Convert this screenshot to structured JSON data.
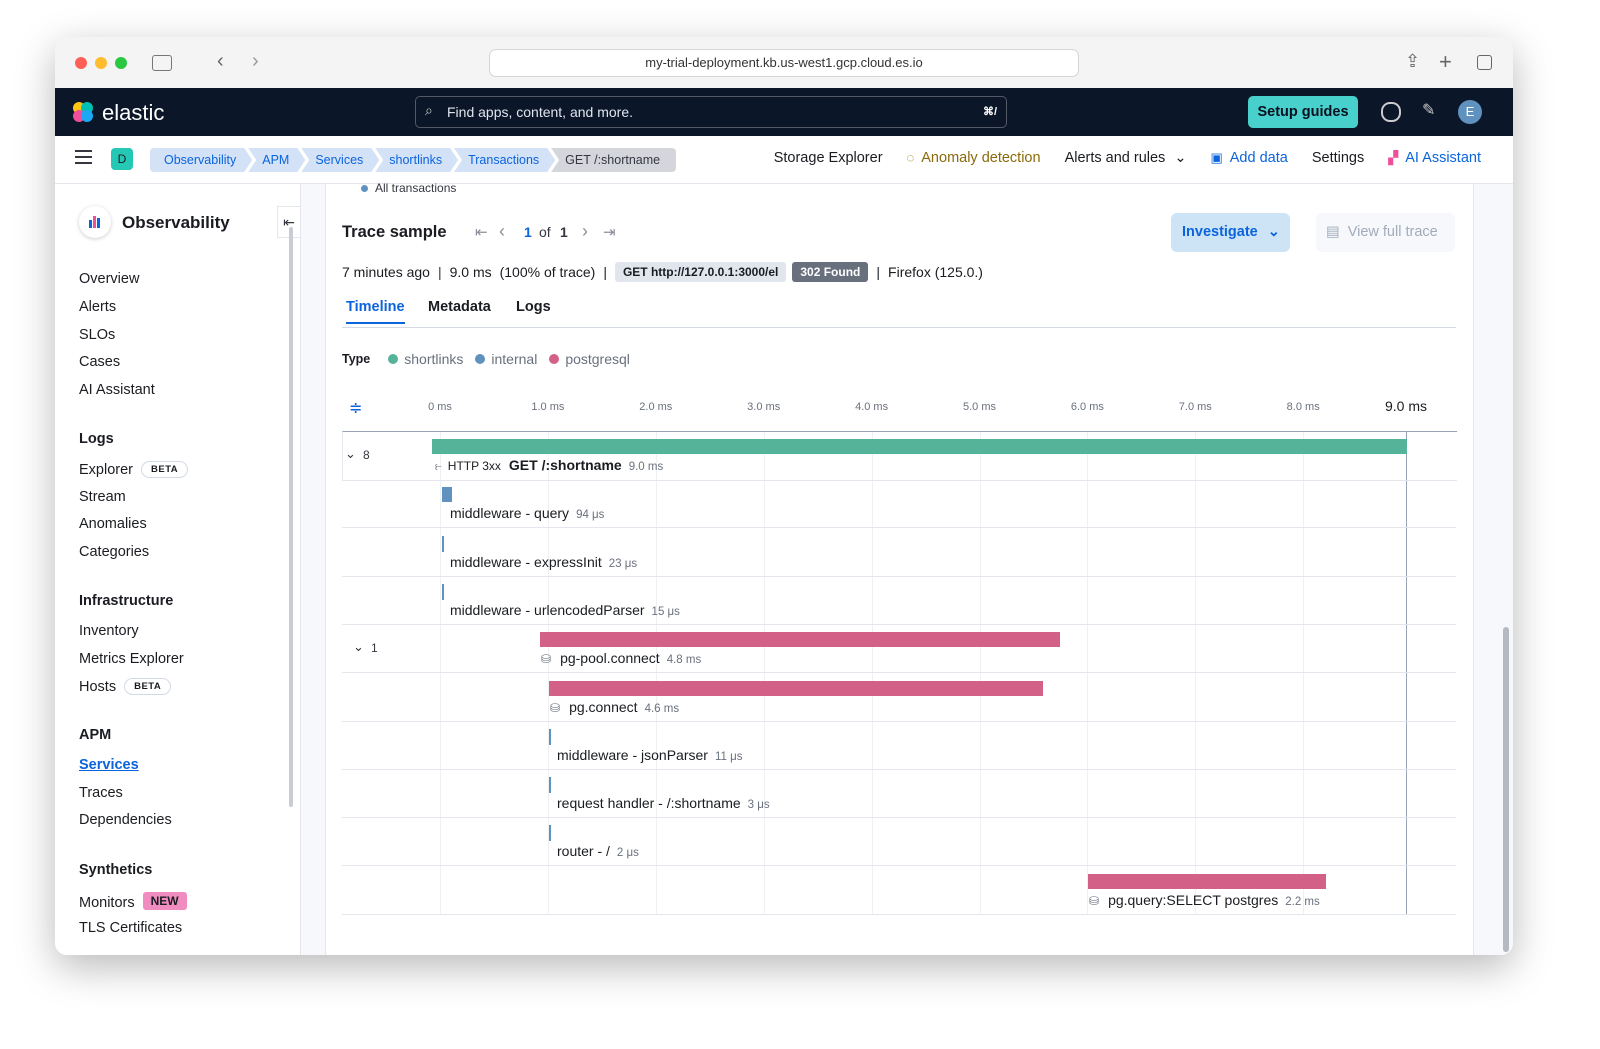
{
  "browser": {
    "url": "my-trial-deployment.kb.us-west1.gcp.cloud.es.io"
  },
  "header": {
    "logo": "elastic",
    "search_placeholder": "Find apps, content, and more.",
    "search_shortcut": "⌘/",
    "setup_guides": "Setup guides",
    "avatar": "E"
  },
  "breadcrumbs": {
    "space": "D",
    "items": [
      "Observability",
      "APM",
      "Services",
      "shortlinks",
      "Transactions",
      "GET /:shortname"
    ]
  },
  "top_nav": [
    "Storage Explorer",
    "Anomaly detection",
    "Alerts and rules",
    "Add data",
    "Settings",
    "AI Assistant"
  ],
  "sidebar": {
    "title": "Observability",
    "items": [
      "Overview",
      "Alerts",
      "SLOs",
      "Cases",
      "AI Assistant"
    ],
    "sections": [
      {
        "title": "Logs",
        "items": [
          {
            "label": "Explorer",
            "badge": "BETA"
          },
          {
            "label": "Stream"
          },
          {
            "label": "Anomalies"
          },
          {
            "label": "Categories"
          }
        ]
      },
      {
        "title": "Infrastructure",
        "items": [
          {
            "label": "Inventory"
          },
          {
            "label": "Metrics Explorer"
          },
          {
            "label": "Hosts",
            "badge": "BETA"
          }
        ]
      },
      {
        "title": "APM",
        "items": [
          {
            "label": "Services"
          },
          {
            "label": "Traces"
          },
          {
            "label": "Dependencies"
          }
        ]
      },
      {
        "title": "Synthetics",
        "items": [
          {
            "label": "Monitors",
            "badge": "NEW"
          },
          {
            "label": "TLS Certificates"
          }
        ]
      }
    ]
  },
  "trace": {
    "prev_item": "All transactions",
    "title": "Trace sample",
    "page": "1",
    "of": "of",
    "total": "1",
    "investigate": "Investigate",
    "view_full_trace": "View full trace",
    "age": "7 minutes ago",
    "duration": "9.0 ms",
    "percent": "(100% of trace)",
    "url": "GET http://127.0.0.1:3000/el",
    "status": "302 Found",
    "agent": "Firefox (125.0.)",
    "tabs": [
      "Timeline",
      "Metadata",
      "Logs"
    ],
    "legend_title": "Type",
    "legend": [
      {
        "name": "shortlinks",
        "color": "#54b399"
      },
      {
        "name": "internal",
        "color": "#6092c0"
      },
      {
        "name": "postgresql",
        "color": "#d36086"
      }
    ],
    "axis": [
      "0 ms",
      "1.0 ms",
      "2.0 ms",
      "3.0 ms",
      "4.0 ms",
      "5.0 ms",
      "6.0 ms",
      "7.0 ms",
      "8.0 ms"
    ],
    "axis_end": "9.0 ms",
    "spans": [
      {
        "count": "8",
        "badge": "HTTP 3xx",
        "name": "GET /:shortname",
        "duration": "9.0 ms"
      },
      {
        "name": "middleware - query",
        "duration": "94 μs"
      },
      {
        "name": "middleware - expressInit",
        "duration": "23 μs"
      },
      {
        "name": "middleware - urlencodedParser",
        "duration": "15 μs"
      },
      {
        "count": "1",
        "name": "pg-pool.connect",
        "duration": "4.8 ms"
      },
      {
        "name": "pg.connect",
        "duration": "4.6 ms"
      },
      {
        "name": "middleware - jsonParser",
        "duration": "11 μs"
      },
      {
        "name": "request handler - /:shortname",
        "duration": "3 μs"
      },
      {
        "name": "router - /",
        "duration": "2 μs"
      },
      {
        "name": "pg.query:SELECT postgres",
        "duration": "2.2 ms"
      }
    ]
  }
}
